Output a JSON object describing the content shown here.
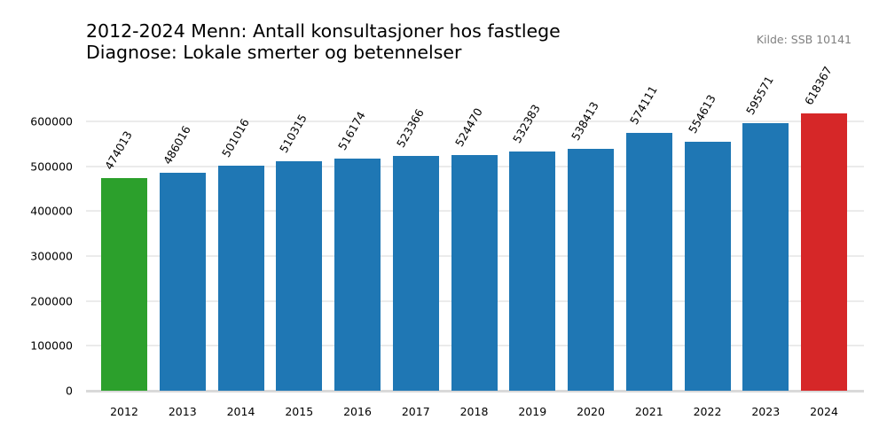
{
  "header": {
    "title_line1": "2012-2024 Menn: Antall konsultasjoner hos fastlege",
    "title_line2": "Diagnose: Lokale smerter og betennelser",
    "source": "Kilde: SSB 10141"
  },
  "colors": {
    "first": "#2ca02c",
    "default": "#1f77b4",
    "last": "#d62728",
    "grid": "#ebebeb",
    "baseline": "#d9d9d9"
  },
  "yticks": [
    "0",
    "100000",
    "200000",
    "300000",
    "400000",
    "500000",
    "600000"
  ],
  "chart_data": {
    "type": "bar",
    "title": "2012-2024 Menn: Antall konsultasjoner hos fastlege\nDiagnose: Lokale smerter og betennelser",
    "subtitle": "Kilde: SSB 10141",
    "xlabel": "",
    "ylabel": "",
    "categories": [
      "2012",
      "2013",
      "2014",
      "2015",
      "2016",
      "2017",
      "2018",
      "2019",
      "2020",
      "2021",
      "2022",
      "2023",
      "2024"
    ],
    "values": [
      474013,
      486016,
      501016,
      510315,
      516174,
      523366,
      524470,
      532383,
      538413,
      574111,
      554613,
      595571,
      618367
    ],
    "data_labels": [
      "474013",
      "486016",
      "501016",
      "510315",
      "516174",
      "523366",
      "524470",
      "532383",
      "538413",
      "574111",
      "554613",
      "595571",
      "618367"
    ],
    "bar_colors": [
      "#2ca02c",
      "#1f77b4",
      "#1f77b4",
      "#1f77b4",
      "#1f77b4",
      "#1f77b4",
      "#1f77b4",
      "#1f77b4",
      "#1f77b4",
      "#1f77b4",
      "#1f77b4",
      "#1f77b4",
      "#d62728"
    ],
    "yticks": [
      0,
      100000,
      200000,
      300000,
      400000,
      500000,
      600000
    ],
    "ylim": [
      0,
      650000
    ],
    "grid": "horizontal",
    "legend": "none"
  }
}
